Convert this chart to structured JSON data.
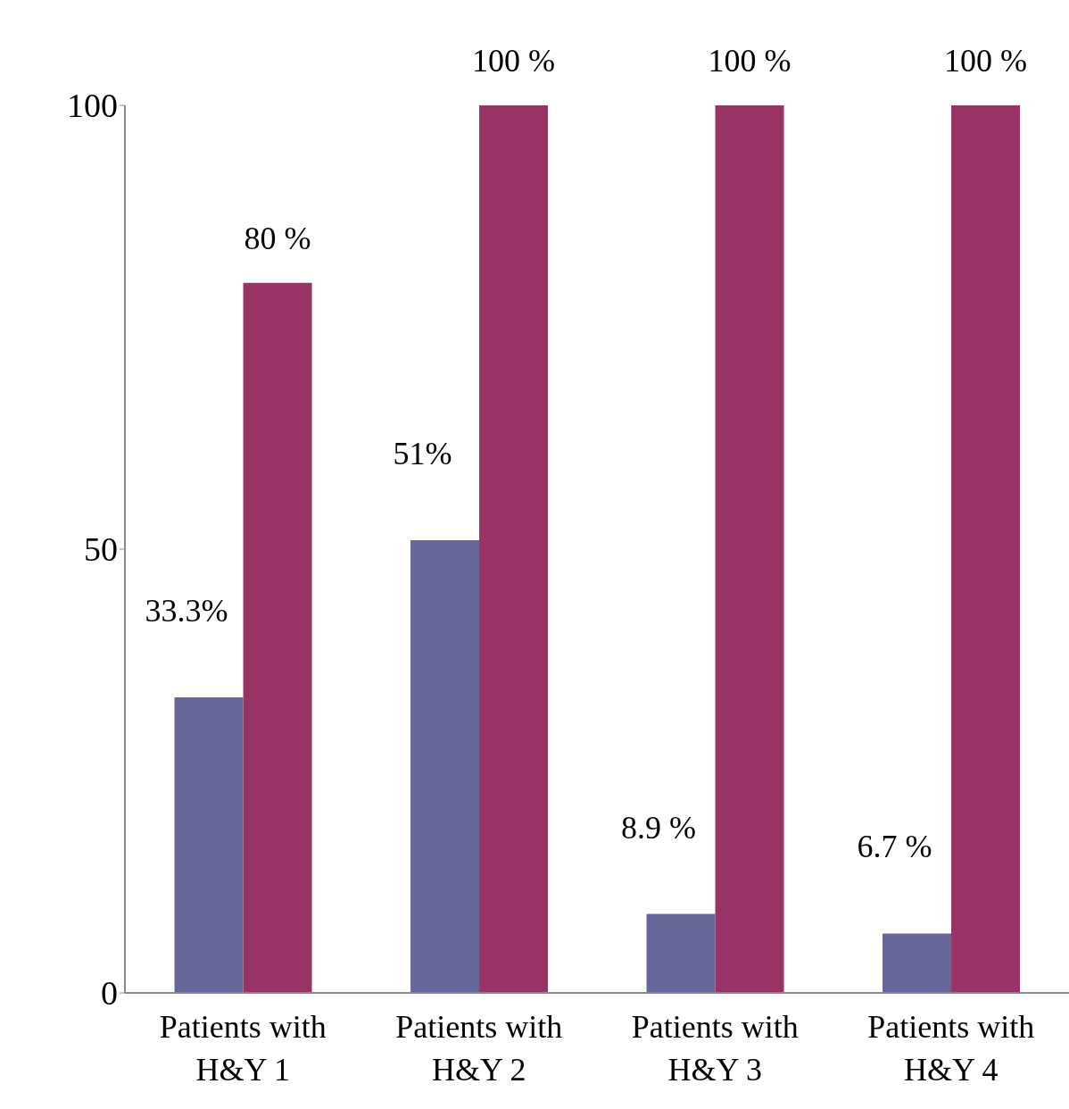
{
  "chart_data": {
    "type": "bar",
    "categories": [
      "Patients with H&Y 1",
      "Patients with H&Y 2",
      "Patients with H&Y 3",
      "Patients with H&Y 4"
    ],
    "series": [
      {
        "color": "#666699",
        "values": [
          33.3,
          51,
          8.9,
          6.7
        ],
        "value_labels": [
          "33.3%",
          "51%",
          "8.9 %",
          "6.7 %"
        ]
      },
      {
        "color": "#993366",
        "values": [
          80,
          100,
          100,
          100
        ],
        "value_labels": [
          "80 %",
          "100 %",
          "100 %",
          "100 %"
        ]
      }
    ],
    "ylim": [
      0,
      100
    ],
    "yticks": [
      0,
      50,
      100
    ],
    "grid": false,
    "legend": false
  }
}
